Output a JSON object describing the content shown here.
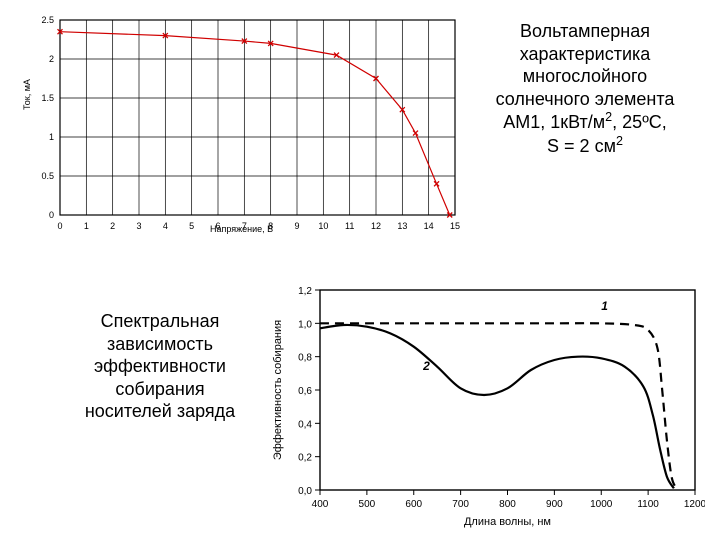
{
  "chart1": {
    "type": "line",
    "xlabel": "Напряжение, В",
    "ylabel": "Ток, мА",
    "xlim": [
      0,
      15
    ],
    "ylim": [
      0,
      2.5
    ],
    "xtick_step": 1,
    "ytick_step": 0.5,
    "grid_color": "#000000",
    "line_color": "#d00000",
    "marker": "x",
    "marker_color": "#d00000",
    "marker_size": 5,
    "line_width": 1.2,
    "points": [
      {
        "x": 0,
        "y": 2.35
      },
      {
        "x": 4,
        "y": 2.3
      },
      {
        "x": 7,
        "y": 2.23
      },
      {
        "x": 8,
        "y": 2.2
      },
      {
        "x": 10.5,
        "y": 2.05
      },
      {
        "x": 12,
        "y": 1.75
      },
      {
        "x": 13,
        "y": 1.35
      },
      {
        "x": 13.5,
        "y": 1.05
      },
      {
        "x": 14.3,
        "y": 0.4
      },
      {
        "x": 14.8,
        "y": 0.0
      }
    ],
    "tick_fontsize": 9
  },
  "caption1": {
    "line1": "Вольтамперная",
    "line2": "характеристика",
    "line3": "многослойного",
    "line4": "солнечного элемента",
    "line5a": "АМ1, 1кВт/м",
    "line5sup": "2",
    "line5b": ", 25ºС,",
    "line6a": "S = 2 см",
    "line6sup": "2"
  },
  "caption2": {
    "line1": "Спектральная",
    "line2": "зависимость",
    "line3": "эффективности",
    "line4": "собирания",
    "line5": "носителей заряда"
  },
  "chart2": {
    "type": "line",
    "xlabel": "Длина волны, нм",
    "ylabel": "Эффективность собирания",
    "xlim": [
      400,
      1200
    ],
    "ylim": [
      0,
      1.2
    ],
    "xticks": [
      400,
      500,
      600,
      700,
      800,
      900,
      1000,
      1100,
      1200
    ],
    "yticks": [
      0.0,
      0.2,
      0.4,
      0.6,
      0.8,
      1.0,
      1.2
    ],
    "axis_color": "#000000",
    "background_color": "#ffffff",
    "line_width": 2.2,
    "series": [
      {
        "name": "1",
        "label_pos": {
          "x": 1000,
          "y": 1.08
        },
        "style": "dash",
        "color": "#000000",
        "points": [
          {
            "x": 400,
            "y": 1.0
          },
          {
            "x": 500,
            "y": 1.0
          },
          {
            "x": 600,
            "y": 1.0
          },
          {
            "x": 700,
            "y": 1.0
          },
          {
            "x": 800,
            "y": 1.0
          },
          {
            "x": 900,
            "y": 1.0
          },
          {
            "x": 1000,
            "y": 1.0
          },
          {
            "x": 1070,
            "y": 0.99
          },
          {
            "x": 1100,
            "y": 0.96
          },
          {
            "x": 1120,
            "y": 0.85
          },
          {
            "x": 1130,
            "y": 0.6
          },
          {
            "x": 1140,
            "y": 0.3
          },
          {
            "x": 1150,
            "y": 0.08
          },
          {
            "x": 1160,
            "y": 0.01
          }
        ]
      },
      {
        "name": "2",
        "label_pos": {
          "x": 620,
          "y": 0.72
        },
        "style": "solid",
        "color": "#000000",
        "points": [
          {
            "x": 400,
            "y": 0.97
          },
          {
            "x": 450,
            "y": 0.99
          },
          {
            "x": 500,
            "y": 0.98
          },
          {
            "x": 550,
            "y": 0.94
          },
          {
            "x": 600,
            "y": 0.86
          },
          {
            "x": 650,
            "y": 0.74
          },
          {
            "x": 700,
            "y": 0.61
          },
          {
            "x": 750,
            "y": 0.57
          },
          {
            "x": 800,
            "y": 0.61
          },
          {
            "x": 850,
            "y": 0.72
          },
          {
            "x": 900,
            "y": 0.78
          },
          {
            "x": 950,
            "y": 0.8
          },
          {
            "x": 1000,
            "y": 0.79
          },
          {
            "x": 1050,
            "y": 0.74
          },
          {
            "x": 1090,
            "y": 0.62
          },
          {
            "x": 1110,
            "y": 0.45
          },
          {
            "x": 1125,
            "y": 0.25
          },
          {
            "x": 1140,
            "y": 0.08
          },
          {
            "x": 1155,
            "y": 0.01
          }
        ]
      }
    ],
    "tick_fontsize": 10,
    "label_fontsize": 11
  }
}
